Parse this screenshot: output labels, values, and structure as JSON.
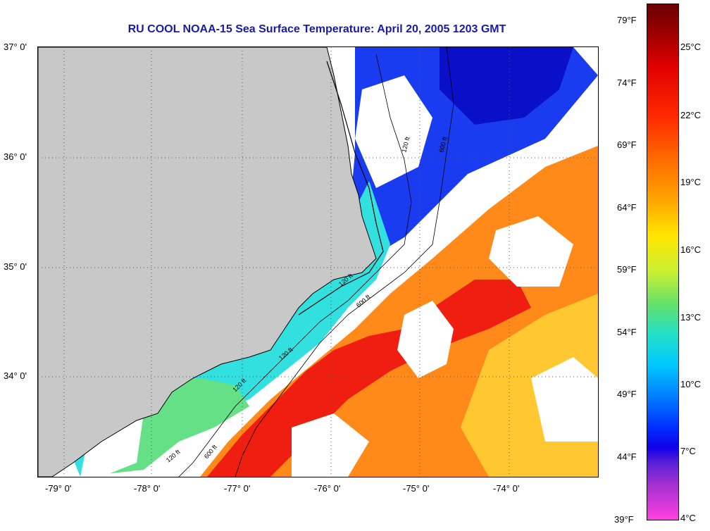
{
  "title": "RU COOL  NOAA-15  Sea Surface Temperature:  April 20, 2005 1203 GMT",
  "map": {
    "lat_labels": [
      "37° 0'",
      "36° 0'",
      "35° 0'",
      "34° 0'"
    ],
    "lon_labels": [
      "-79° 0'",
      "-78° 0'",
      "-77° 0'",
      "-76° 0'",
      "-75° 0'",
      "-74° 0'"
    ],
    "isobath_labels": [
      "120 ft",
      "600 ft",
      "120 ft",
      "120 ft",
      "120 ft",
      "600 ft",
      "120 ft",
      "600 ft"
    ],
    "land_color": "#c8c8c8",
    "cloud_color": "#ffffff"
  },
  "colorbar": {
    "fahrenheit": [
      "79°F",
      "74°F",
      "69°F",
      "64°F",
      "59°F",
      "54°F",
      "49°F",
      "44°F",
      "39°F"
    ],
    "celsius": [
      "25°C",
      "22°C",
      "19°C",
      "16°C",
      "13°C",
      "10°C",
      "7°C",
      "4°C"
    ]
  }
}
